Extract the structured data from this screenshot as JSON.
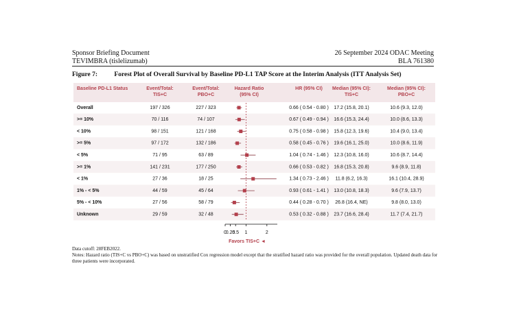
{
  "header": {
    "left": [
      "Sponsor Briefing Document",
      "TEVIMBRA (tislelizumab)"
    ],
    "right": [
      "26 September 2024 ODAC Meeting",
      "BLA 761380"
    ]
  },
  "figure": {
    "label": "Figure 7:",
    "title": "Forest Plot of Overall Survival by Baseline PD-L1 TAP Score at the Interim Analysis (ITT Analysis Set)"
  },
  "table": {
    "columns": [
      [
        "Baseline PD-L1 Status"
      ],
      [
        "Event/Total:",
        "TIS+C"
      ],
      [
        "Event/Total:",
        "PBO+C"
      ],
      [
        "Hazard Ratio",
        "(95% CI)"
      ],
      [
        "HR (95% CI)"
      ],
      [
        "Median (95% CI):",
        "TIS+C"
      ],
      [
        "Median (95% CI):",
        "PBO+C"
      ]
    ],
    "rows": [
      [
        "Overall",
        "197 / 326",
        "227 / 323",
        "0.66 ( 0.54 - 0.80 )",
        "17.2 (15.8, 20.1)",
        "10.6 (9.3, 12.0)"
      ],
      [
        ">= 10%",
        "70 / 116",
        "74 / 107",
        "0.67 ( 0.49 - 0.94 )",
        "16.6 (15.3, 24.4)",
        "10.0 (8.6, 13.3)"
      ],
      [
        "< 10%",
        "98 / 151",
        "121 / 168",
        "0.75 ( 0.58 - 0.98 )",
        "15.8 (12.3, 19.6)",
        "10.4 (9.0, 13.4)"
      ],
      [
        ">= 5%",
        "97 / 172",
        "132 / 186",
        "0.58 ( 0.45 - 0.76 )",
        "19.6 (16.1, 25.0)",
        "10.0 (8.6, 11.9)"
      ],
      [
        "< 5%",
        "71 / 95",
        "63 / 89",
        "1.04 ( 0.74 - 1.46 )",
        "12.3 (10.8, 16.0)",
        "10.6 (8.7, 14.4)"
      ],
      [
        ">= 1%",
        "141 / 231",
        "177 / 250",
        "0.66 ( 0.53 - 0.82 )",
        "16.8 (15.3, 20.8)",
        "9.6 (8.9, 11.8)"
      ],
      [
        "< 1%",
        "27 / 36",
        "18 / 25",
        "1.34 ( 0.73 - 2.46 )",
        "11.8 (6.2, 16.3)",
        "16.1 (10.4, 28.9)"
      ],
      [
        "1% - < 5%",
        "44 / 59",
        "45 / 64",
        "0.93 ( 0.61 - 1.41 )",
        "13.0 (10.8, 18.3)",
        "9.6 (7.9, 13.7)"
      ],
      [
        "5% - < 10%",
        "27 / 56",
        "58 / 79",
        "0.44 ( 0.28 - 0.70 )",
        "26.8 (16.4, NE)",
        "9.8 (8.0, 13.0)"
      ],
      [
        "Unknown",
        "29 / 59",
        "32 / 48",
        "0.53 ( 0.32 - 0.88 )",
        "23.7 (16.6, 28.4)",
        "11.7 (7.4, 21.7)"
      ]
    ]
  },
  "chart_data": {
    "type": "forest",
    "x_label": "Favors TIS+C ◄",
    "values": [
      0.66,
      0.67,
      0.75,
      0.58,
      1.04,
      0.66,
      1.34,
      0.93,
      0.44,
      0.53
    ],
    "lower": [
      0.54,
      0.49,
      0.58,
      0.45,
      0.74,
      0.53,
      0.73,
      0.61,
      0.28,
      0.32
    ],
    "upper": [
      0.8,
      0.94,
      0.98,
      0.76,
      1.46,
      0.82,
      2.46,
      1.41,
      0.7,
      0.88
    ],
    "xlim": [
      0,
      2.5
    ],
    "xticks": [
      0,
      0.25,
      0.5,
      1,
      2
    ],
    "ref_line": 1,
    "color": "#b3404c"
  },
  "notes": [
    "Data cutoff: 28FEB2022.",
    "Notes: Hazard ratio (TIS+C vs PBO+C) was based on unstratified Cox regression model except that the stratified hazard ratio was provided for the overall population. Updated death data for three patients were incorporated."
  ]
}
